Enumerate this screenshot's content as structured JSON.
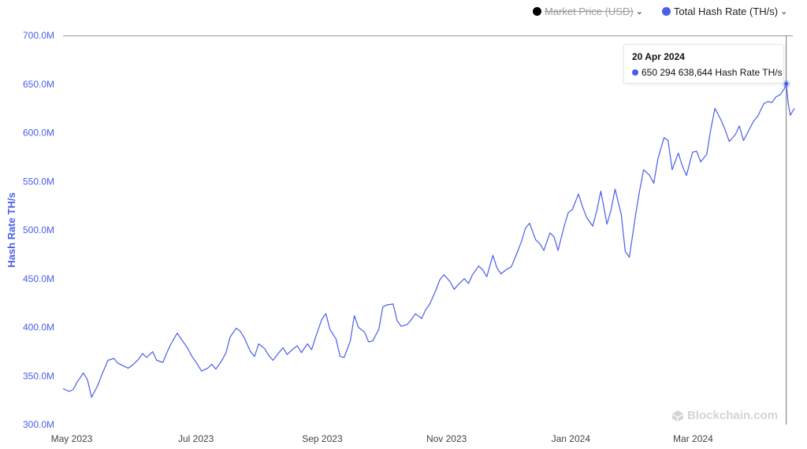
{
  "legend": {
    "market_price": {
      "label": "Market Price (USD)",
      "color": "#000000",
      "enabled": false
    },
    "hash_rate": {
      "label": "Total Hash Rate (TH/s)",
      "color": "#4a5eeb",
      "enabled": true
    }
  },
  "tooltip": {
    "date": "20 Apr 2024",
    "value_text": "650 294 638,644 Hash Rate TH/s"
  },
  "watermark": "Blockchain.com",
  "chart_data": {
    "type": "line",
    "ylabel": "Hash Rate TH/s",
    "xlabel": "",
    "ylim": [
      300,
      700
    ],
    "yunit": "M",
    "yticks": [
      "700.0M",
      "650.0M",
      "600.0M",
      "550.0M",
      "500.0M",
      "450.0M",
      "400.0M",
      "350.0M",
      "300.0M"
    ],
    "xticks": [
      {
        "label": "May 2023",
        "date": "2023-05-01"
      },
      {
        "label": "Jul 2023",
        "date": "2023-07-01"
      },
      {
        "label": "Sep 2023",
        "date": "2023-09-01"
      },
      {
        "label": "Nov 2023",
        "date": "2023-11-01"
      },
      {
        "label": "Jan 2024",
        "date": "2024-01-01"
      },
      {
        "label": "Mar 2024",
        "date": "2024-03-01"
      }
    ],
    "x_range": [
      "2023-05-01",
      "2024-04-24"
    ],
    "grid": false,
    "line_color": "#4a5eeb",
    "series": [
      {
        "name": "Total Hash Rate (TH/s)",
        "points": [
          [
            "2023-05-01",
            337
          ],
          [
            "2023-05-04",
            334
          ],
          [
            "2023-05-06",
            336
          ],
          [
            "2023-05-08",
            344
          ],
          [
            "2023-05-11",
            353
          ],
          [
            "2023-05-13",
            346
          ],
          [
            "2023-05-15",
            328
          ],
          [
            "2023-05-18",
            340
          ],
          [
            "2023-05-20",
            351
          ],
          [
            "2023-05-23",
            366
          ],
          [
            "2023-05-26",
            368
          ],
          [
            "2023-05-28",
            363
          ],
          [
            "2023-05-31",
            360
          ],
          [
            "2023-06-02",
            358
          ],
          [
            "2023-06-04",
            361
          ],
          [
            "2023-06-07",
            367
          ],
          [
            "2023-06-09",
            373
          ],
          [
            "2023-06-11",
            369
          ],
          [
            "2023-06-14",
            375
          ],
          [
            "2023-06-16",
            366
          ],
          [
            "2023-06-19",
            364
          ],
          [
            "2023-06-21",
            374
          ],
          [
            "2023-06-23",
            383
          ],
          [
            "2023-06-26",
            394
          ],
          [
            "2023-06-28",
            388
          ],
          [
            "2023-07-01",
            379
          ],
          [
            "2023-07-03",
            371
          ],
          [
            "2023-07-05",
            365
          ],
          [
            "2023-07-08",
            355
          ],
          [
            "2023-07-11",
            358
          ],
          [
            "2023-07-13",
            362
          ],
          [
            "2023-07-15",
            357
          ],
          [
            "2023-07-18",
            366
          ],
          [
            "2023-07-20",
            374
          ],
          [
            "2023-07-22",
            390
          ],
          [
            "2023-07-25",
            399
          ],
          [
            "2023-07-27",
            396
          ],
          [
            "2023-07-29",
            389
          ],
          [
            "2023-08-01",
            375
          ],
          [
            "2023-08-03",
            370
          ],
          [
            "2023-08-05",
            383
          ],
          [
            "2023-08-08",
            378
          ],
          [
            "2023-08-10",
            371
          ],
          [
            "2023-08-12",
            366
          ],
          [
            "2023-08-15",
            374
          ],
          [
            "2023-08-17",
            379
          ],
          [
            "2023-08-19",
            372
          ],
          [
            "2023-08-22",
            378
          ],
          [
            "2023-08-24",
            381
          ],
          [
            "2023-08-26",
            374
          ],
          [
            "2023-08-29",
            383
          ],
          [
            "2023-08-31",
            377
          ],
          [
            "2023-09-02",
            390
          ],
          [
            "2023-09-05",
            408
          ],
          [
            "2023-09-07",
            414
          ],
          [
            "2023-09-09",
            398
          ],
          [
            "2023-09-12",
            388
          ],
          [
            "2023-09-14",
            370
          ],
          [
            "2023-09-16",
            369
          ],
          [
            "2023-09-19",
            386
          ],
          [
            "2023-09-21",
            412
          ],
          [
            "2023-09-23",
            400
          ],
          [
            "2023-09-26",
            395
          ],
          [
            "2023-09-28",
            385
          ],
          [
            "2023-09-30",
            386
          ],
          [
            "2023-10-03",
            398
          ],
          [
            "2023-10-05",
            421
          ],
          [
            "2023-10-07",
            423
          ],
          [
            "2023-10-10",
            424
          ],
          [
            "2023-10-12",
            407
          ],
          [
            "2023-10-14",
            401
          ],
          [
            "2023-10-17",
            403
          ],
          [
            "2023-10-19",
            408
          ],
          [
            "2023-10-21",
            414
          ],
          [
            "2023-10-24",
            409
          ],
          [
            "2023-10-26",
            418
          ],
          [
            "2023-10-28",
            424
          ],
          [
            "2023-10-31",
            438
          ],
          [
            "2023-11-02",
            449
          ],
          [
            "2023-11-04",
            454
          ],
          [
            "2023-11-07",
            447
          ],
          [
            "2023-11-09",
            439
          ],
          [
            "2023-11-11",
            444
          ],
          [
            "2023-11-14",
            450
          ],
          [
            "2023-11-16",
            445
          ],
          [
            "2023-11-18",
            454
          ],
          [
            "2023-11-21",
            463
          ],
          [
            "2023-11-23",
            459
          ],
          [
            "2023-11-25",
            452
          ],
          [
            "2023-11-28",
            474
          ],
          [
            "2023-11-30",
            461
          ],
          [
            "2023-12-02",
            455
          ],
          [
            "2023-12-05",
            460
          ],
          [
            "2023-12-07",
            462
          ],
          [
            "2023-12-09",
            472
          ],
          [
            "2023-12-12",
            488
          ],
          [
            "2023-12-14",
            502
          ],
          [
            "2023-12-16",
            507
          ],
          [
            "2023-12-19",
            490
          ],
          [
            "2023-12-21",
            486
          ],
          [
            "2023-12-23",
            479
          ],
          [
            "2023-12-26",
            497
          ],
          [
            "2023-12-28",
            493
          ],
          [
            "2023-12-30",
            479
          ],
          [
            "2024-01-02",
            504
          ],
          [
            "2024-01-04",
            518
          ],
          [
            "2024-01-06",
            521
          ],
          [
            "2024-01-09",
            537
          ],
          [
            "2024-01-11",
            524
          ],
          [
            "2024-01-13",
            513
          ],
          [
            "2024-01-16",
            504
          ],
          [
            "2024-01-18",
            520
          ],
          [
            "2024-01-20",
            540
          ],
          [
            "2024-01-23",
            506
          ],
          [
            "2024-01-25",
            521
          ],
          [
            "2024-01-27",
            542
          ],
          [
            "2024-01-30",
            516
          ],
          [
            "2024-02-01",
            478
          ],
          [
            "2024-02-03",
            472
          ],
          [
            "2024-02-06",
            515
          ],
          [
            "2024-02-08",
            540
          ],
          [
            "2024-02-10",
            562
          ],
          [
            "2024-02-13",
            556
          ],
          [
            "2024-02-15",
            548
          ],
          [
            "2024-02-17",
            573
          ],
          [
            "2024-02-20",
            595
          ],
          [
            "2024-02-22",
            592
          ],
          [
            "2024-02-24",
            562
          ],
          [
            "2024-02-27",
            579
          ],
          [
            "2024-02-29",
            566
          ],
          [
            "2024-03-02",
            556
          ],
          [
            "2024-03-05",
            580
          ],
          [
            "2024-03-07",
            581
          ],
          [
            "2024-03-09",
            570
          ],
          [
            "2024-03-12",
            578
          ],
          [
            "2024-03-14",
            604
          ],
          [
            "2024-03-16",
            625
          ],
          [
            "2024-03-19",
            613
          ],
          [
            "2024-03-21",
            603
          ],
          [
            "2024-03-23",
            591
          ],
          [
            "2024-03-26",
            598
          ],
          [
            "2024-03-28",
            607
          ],
          [
            "2024-03-30",
            592
          ],
          [
            "2024-04-02",
            604
          ],
          [
            "2024-04-04",
            612
          ],
          [
            "2024-04-06",
            617
          ],
          [
            "2024-04-09",
            630
          ],
          [
            "2024-04-11",
            632
          ],
          [
            "2024-04-13",
            631
          ],
          [
            "2024-04-15",
            637
          ],
          [
            "2024-04-17",
            639
          ],
          [
            "2024-04-19",
            645
          ],
          [
            "2024-04-20",
            650.294638644
          ],
          [
            "2024-04-21",
            630
          ],
          [
            "2024-04-22",
            618
          ],
          [
            "2024-04-24",
            625
          ]
        ]
      }
    ],
    "highlight": {
      "date": "2024-04-20",
      "value": 650.294638644
    }
  }
}
